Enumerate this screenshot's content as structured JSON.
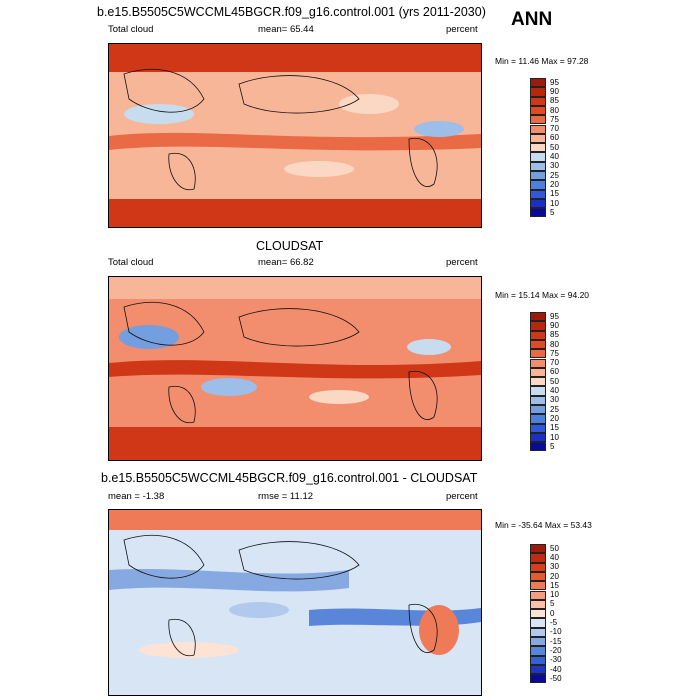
{
  "chart_data": [
    {
      "type": "heatmap",
      "title": "b.e15.B5505C5WCCML45BGCR.f09_g16.control.001 (yrs 2011-2030)",
      "season": "ANN",
      "left_label": "Total cloud",
      "center_label": "mean=  65.44",
      "right_label": "percent",
      "minmax_label": "Min =  11.46 Max =  97.28",
      "stats": {
        "mean": 65.44,
        "min": 11.46,
        "max": 97.28
      },
      "colorbar_levels": [
        "95",
        "90",
        "85",
        "80",
        "75",
        "70",
        "60",
        "50",
        "40",
        "30",
        "25",
        "20",
        "15",
        "10",
        "5"
      ],
      "colorbar_colors": [
        "#9c1b0a",
        "#b8260c",
        "#cf3717",
        "#e04a25",
        "#ea6a45",
        "#f28e6e",
        "#f8b699",
        "#fbd8c3",
        "#c8dcf0",
        "#9dbee8",
        "#739ee0",
        "#4d7fde",
        "#3058d8",
        "#1a2fc8",
        "#0a0a9a"
      ]
    },
    {
      "type": "heatmap",
      "title": "CLOUDSAT",
      "left_label": "Total cloud",
      "center_label": "mean=  66.82",
      "right_label": "percent",
      "minmax_label": "Min =  15.14 Max =  94.20",
      "stats": {
        "mean": 66.82,
        "min": 15.14,
        "max": 94.2
      },
      "colorbar_levels": [
        "95",
        "90",
        "85",
        "80",
        "75",
        "70",
        "60",
        "50",
        "40",
        "30",
        "25",
        "20",
        "15",
        "10",
        "5"
      ],
      "colorbar_colors": [
        "#9c1b0a",
        "#b8260c",
        "#cf3717",
        "#e04a25",
        "#ea6a45",
        "#f28e6e",
        "#f8b699",
        "#fbd8c3",
        "#c8dcf0",
        "#9dbee8",
        "#739ee0",
        "#4d7fde",
        "#3058d8",
        "#1a2fc8",
        "#0a0a9a"
      ]
    },
    {
      "type": "heatmap",
      "title": "b.e15.B5505C5WCCML45BGCR.f09_g16.control.001 - CLOUDSAT",
      "left_label": "mean =  -1.38",
      "center_label": "rmse =  11.12",
      "right_label": "percent",
      "minmax_label": "Min = -35.64 Max =  53.43",
      "stats": {
        "mean": -1.38,
        "rmse": 11.12,
        "min": -35.64,
        "max": 53.43
      },
      "colorbar_levels": [
        "50",
        "40",
        "30",
        "20",
        "15",
        "10",
        "5",
        "0",
        "-5",
        "-10",
        "-15",
        "-20",
        "-30",
        "-40",
        "-50"
      ],
      "colorbar_colors": [
        "#9c1b0a",
        "#c02a10",
        "#d83e1c",
        "#e65a32",
        "#ef7a57",
        "#f59d80",
        "#f9c1aa",
        "#fce3d6",
        "#d7e5f5",
        "#b0c9ec",
        "#86a9e2",
        "#5a86d9",
        "#3561d3",
        "#1c36c2",
        "#0a0a9a"
      ]
    }
  ]
}
